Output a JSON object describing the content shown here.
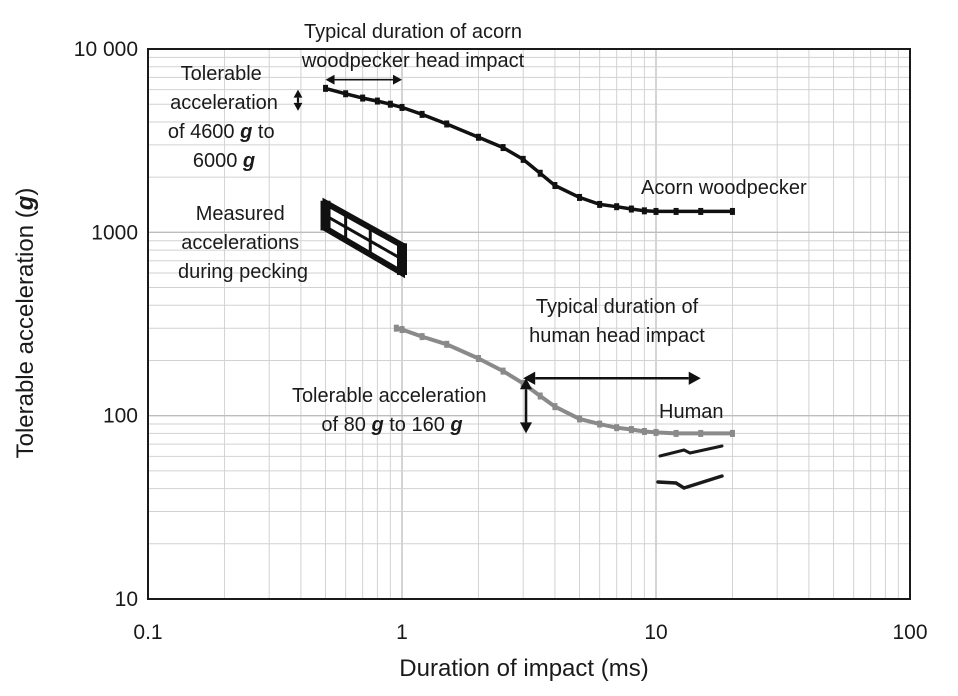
{
  "chart_data": {
    "type": "line",
    "xscale": "log",
    "yscale": "log",
    "xlim": [
      0.1,
      100
    ],
    "ylim": [
      10,
      10000
    ],
    "grid": true,
    "xlabel": "Duration of impact (ms)",
    "ylabel_main": "Tolerable acceleration (",
    "ylabel_g": "g",
    "ylabel_end": ")",
    "xticks": [
      "0.1",
      "1",
      "10",
      "100"
    ],
    "yticks": [
      "10",
      "100",
      "1000",
      "10 000"
    ],
    "series": [
      {
        "name": "Acorn woodpecker",
        "color": "#111111",
        "x": [
          0.5,
          0.6,
          0.7,
          0.8,
          0.9,
          1.0,
          1.2,
          1.5,
          2.0,
          2.5,
          3.0,
          3.5,
          4.0,
          5.0,
          6.0,
          7.0,
          8.0,
          9.0,
          10,
          12,
          15,
          20
        ],
        "y": [
          6100,
          5700,
          5400,
          5200,
          5000,
          4800,
          4400,
          3900,
          3300,
          2900,
          2500,
          2100,
          1800,
          1550,
          1420,
          1380,
          1340,
          1310,
          1300,
          1300,
          1300,
          1300
        ]
      },
      {
        "name": "Human",
        "color": "#8a8a8a",
        "x": [
          0.95,
          1.0,
          1.2,
          1.5,
          2.0,
          2.5,
          3.0,
          3.5,
          4.0,
          5.0,
          6.0,
          7.0,
          8.0,
          9.0,
          10,
          12,
          15,
          20
        ],
        "y": [
          300,
          295,
          270,
          245,
          205,
          175,
          150,
          128,
          112,
          96,
          90,
          86,
          84,
          82,
          81,
          80,
          80,
          80
        ]
      }
    ],
    "measured_pecking": {
      "label_lines": [
        "Measured",
        "accelerations",
        "during pecking"
      ],
      "x_range": [
        0.5,
        1.0
      ],
      "upper": [
        1450,
        850
      ],
      "lower": [
        1050,
        600
      ],
      "internal_x": [
        0.6,
        0.75
      ]
    },
    "annotations": {
      "woodpecker_duration_lines": [
        "Typical duration of acorn",
        "woodpecker head impact"
      ],
      "woodpecker_duration_range": [
        0.5,
        1.0
      ],
      "woodpecker_duration_y": 6800,
      "woodpecker_tolerable": {
        "line1": "Tolerable",
        "line2": "acceleration",
        "line3_pre": "of 4600 ",
        "line3_g": "g",
        "line3_post": " to",
        "line4_pre": "6000 ",
        "line4_g": "g"
      },
      "woodpecker_tolerable_range": [
        4600,
        6000
      ],
      "human_duration_lines": [
        "Typical duration of",
        "human head impact"
      ],
      "human_duration_range": [
        3,
        15
      ],
      "human_duration_y": 160,
      "human_tolerable": {
        "line1": "Tolerable acceleration",
        "line2_pre": "of 80 ",
        "line2_g": "g",
        "line2_mid": " to 160 ",
        "line2_g2": "g"
      },
      "human_tolerable_range": [
        80,
        160
      ]
    }
  }
}
